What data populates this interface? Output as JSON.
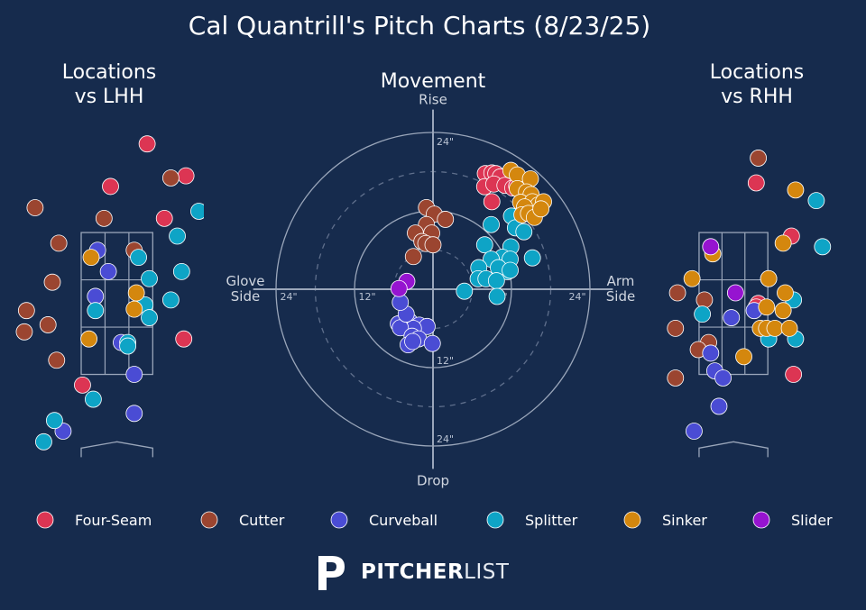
{
  "title": "Cal Quantrill's Pitch Charts (8/23/25)",
  "colors": {
    "background": "#162b4d",
    "Four-Seam": "#dc3553",
    "Cutter": "#9b4530",
    "Curveball": "#4a4cd4",
    "Splitter": "#0ea4c6",
    "Sinker": "#d4870e",
    "Slider": "#9614d0"
  },
  "brand": {
    "bold": "PITCHER",
    "light": "LIST"
  },
  "chart_data": [
    {
      "type": "scatter",
      "name": "lhh",
      "title": "Locations\nvs LHH",
      "xlim": [
        -2.4,
        2.1
      ],
      "ylim": [
        0.3,
        5.0
      ],
      "points": [
        {
          "pitch": "Four-Seam",
          "x": 0.7,
          "y": 4.75
        },
        {
          "pitch": "Four-Seam",
          "x": 1.6,
          "y": 4.3
        },
        {
          "pitch": "Four-Seam",
          "x": -0.15,
          "y": 4.15
        },
        {
          "pitch": "Four-Seam",
          "x": 1.1,
          "y": 3.7
        },
        {
          "pitch": "Four-Seam",
          "x": 1.55,
          "y": 2.0
        },
        {
          "pitch": "Four-Seam",
          "x": -0.8,
          "y": 1.35
        },
        {
          "pitch": "Cutter",
          "x": 1.25,
          "y": 4.27
        },
        {
          "pitch": "Cutter",
          "x": -1.9,
          "y": 3.85
        },
        {
          "pitch": "Cutter",
          "x": -0.3,
          "y": 3.7
        },
        {
          "pitch": "Cutter",
          "x": -1.35,
          "y": 3.35
        },
        {
          "pitch": "Cutter",
          "x": 0.4,
          "y": 3.25
        },
        {
          "pitch": "Cutter",
          "x": -1.5,
          "y": 2.8
        },
        {
          "pitch": "Cutter",
          "x": -2.1,
          "y": 2.4
        },
        {
          "pitch": "Cutter",
          "x": -1.6,
          "y": 2.2
        },
        {
          "pitch": "Cutter",
          "x": -2.15,
          "y": 2.1
        },
        {
          "pitch": "Cutter",
          "x": -1.4,
          "y": 1.7
        },
        {
          "pitch": "Curveball",
          "x": -0.45,
          "y": 3.25
        },
        {
          "pitch": "Curveball",
          "x": -0.2,
          "y": 2.95
        },
        {
          "pitch": "Curveball",
          "x": -0.5,
          "y": 2.6
        },
        {
          "pitch": "Curveball",
          "x": 0.1,
          "y": 1.95
        },
        {
          "pitch": "Curveball",
          "x": 0.4,
          "y": 1.5
        },
        {
          "pitch": "Curveball",
          "x": 0.4,
          "y": 0.95
        },
        {
          "pitch": "Curveball",
          "x": -1.25,
          "y": 0.7
        },
        {
          "pitch": "Splitter",
          "x": 1.9,
          "y": 3.8
        },
        {
          "pitch": "Splitter",
          "x": 1.4,
          "y": 3.45
        },
        {
          "pitch": "Splitter",
          "x": 0.5,
          "y": 3.15
        },
        {
          "pitch": "Splitter",
          "x": 1.5,
          "y": 2.95
        },
        {
          "pitch": "Splitter",
          "x": 0.75,
          "y": 2.85
        },
        {
          "pitch": "Splitter",
          "x": 1.25,
          "y": 2.55
        },
        {
          "pitch": "Splitter",
          "x": 0.65,
          "y": 2.48
        },
        {
          "pitch": "Splitter",
          "x": -0.5,
          "y": 2.4
        },
        {
          "pitch": "Splitter",
          "x": 0.75,
          "y": 2.3
        },
        {
          "pitch": "Splitter",
          "x": 0.25,
          "y": 1.95
        },
        {
          "pitch": "Splitter",
          "x": 0.25,
          "y": 1.9
        },
        {
          "pitch": "Splitter",
          "x": -0.55,
          "y": 1.15
        },
        {
          "pitch": "Splitter",
          "x": -1.45,
          "y": 0.85
        },
        {
          "pitch": "Splitter",
          "x": -1.7,
          "y": 0.55
        },
        {
          "pitch": "Sinker",
          "x": -0.6,
          "y": 3.15
        },
        {
          "pitch": "Sinker",
          "x": 0.45,
          "y": 2.65
        },
        {
          "pitch": "Sinker",
          "x": 0.4,
          "y": 2.42
        },
        {
          "pitch": "Sinker",
          "x": -0.65,
          "y": 2.0
        }
      ]
    },
    {
      "type": "scatter",
      "name": "movement",
      "title": "Movement",
      "labels": {
        "top": "Rise",
        "bottom": "Drop",
        "left": "Glove\nSide",
        "right": "Arm\nSide"
      },
      "rings": [
        {
          "value": 12,
          "style": "solid",
          "label": "12\""
        },
        {
          "value": 18,
          "style": "dashed",
          "label": ""
        },
        {
          "value": 24,
          "style": "solid",
          "label": "24\""
        }
      ],
      "inner_ring": 6,
      "range": 27.5,
      "points": [
        {
          "pitch": "Four-Seam",
          "x": 8.0,
          "y": 17.7
        },
        {
          "pitch": "Four-Seam",
          "x": 9.0,
          "y": 17.8
        },
        {
          "pitch": "Four-Seam",
          "x": 9.6,
          "y": 17.7
        },
        {
          "pitch": "Four-Seam",
          "x": 10.3,
          "y": 17.2
        },
        {
          "pitch": "Four-Seam",
          "x": 7.9,
          "y": 15.7
        },
        {
          "pitch": "Four-Seam",
          "x": 9.3,
          "y": 16.1
        },
        {
          "pitch": "Four-Seam",
          "x": 11.0,
          "y": 15.9
        },
        {
          "pitch": "Four-Seam",
          "x": 12.2,
          "y": 15.5
        },
        {
          "pitch": "Four-Seam",
          "x": 12.8,
          "y": 15.8
        },
        {
          "pitch": "Four-Seam",
          "x": 13.3,
          "y": 15.6
        },
        {
          "pitch": "Four-Seam",
          "x": 9.0,
          "y": 13.4
        },
        {
          "pitch": "Cutter",
          "x": -1.0,
          "y": 12.5
        },
        {
          "pitch": "Cutter",
          "x": 0.2,
          "y": 11.5
        },
        {
          "pitch": "Cutter",
          "x": 1.9,
          "y": 10.7
        },
        {
          "pitch": "Cutter",
          "x": -1.0,
          "y": 9.9
        },
        {
          "pitch": "Cutter",
          "x": -2.7,
          "y": 8.6
        },
        {
          "pitch": "Cutter",
          "x": -0.2,
          "y": 8.6
        },
        {
          "pitch": "Cutter",
          "x": -1.7,
          "y": 7.3
        },
        {
          "pitch": "Cutter",
          "x": -1.1,
          "y": 7.0
        },
        {
          "pitch": "Cutter",
          "x": 0.0,
          "y": 6.8
        },
        {
          "pitch": "Cutter",
          "x": -3.0,
          "y": 5.0
        },
        {
          "pitch": "Curveball",
          "x": -5.3,
          "y": -5.3
        },
        {
          "pitch": "Curveball",
          "x": -3.6,
          "y": -4.9
        },
        {
          "pitch": "Curveball",
          "x": -2.1,
          "y": -5.5
        },
        {
          "pitch": "Curveball",
          "x": -0.9,
          "y": -5.7
        },
        {
          "pitch": "Curveball",
          "x": -3.0,
          "y": -6.0
        },
        {
          "pitch": "Curveball",
          "x": -5.0,
          "y": -5.9
        },
        {
          "pitch": "Curveball",
          "x": -3.2,
          "y": -7.2
        },
        {
          "pitch": "Curveball",
          "x": -3.8,
          "y": -8.5
        },
        {
          "pitch": "Curveball",
          "x": -2.2,
          "y": -7.6
        },
        {
          "pitch": "Curveball",
          "x": -4.1,
          "y": -3.8
        },
        {
          "pitch": "Curveball",
          "x": -5.0,
          "y": -2.0
        },
        {
          "pitch": "Curveball",
          "x": -3.1,
          "y": -8.0
        },
        {
          "pitch": "Curveball",
          "x": -0.1,
          "y": -8.3
        },
        {
          "pitch": "Splitter",
          "x": 8.9,
          "y": 9.9
        },
        {
          "pitch": "Splitter",
          "x": 12.0,
          "y": 11.2
        },
        {
          "pitch": "Splitter",
          "x": 12.6,
          "y": 9.4
        },
        {
          "pitch": "Splitter",
          "x": 13.9,
          "y": 8.8
        },
        {
          "pitch": "Splitter",
          "x": 7.9,
          "y": 6.8
        },
        {
          "pitch": "Splitter",
          "x": 11.9,
          "y": 6.5
        },
        {
          "pitch": "Splitter",
          "x": 10.6,
          "y": 4.9
        },
        {
          "pitch": "Splitter",
          "x": 8.9,
          "y": 4.6
        },
        {
          "pitch": "Splitter",
          "x": 11.8,
          "y": 4.6
        },
        {
          "pitch": "Splitter",
          "x": 15.2,
          "y": 4.8
        },
        {
          "pitch": "Splitter",
          "x": 11.4,
          "y": 2.7
        },
        {
          "pitch": "Splitter",
          "x": 7.0,
          "y": 3.3
        },
        {
          "pitch": "Splitter",
          "x": 10.0,
          "y": 3.3
        },
        {
          "pitch": "Splitter",
          "x": 11.8,
          "y": 2.9
        },
        {
          "pitch": "Splitter",
          "x": 6.9,
          "y": 1.6
        },
        {
          "pitch": "Splitter",
          "x": 8.1,
          "y": 1.6
        },
        {
          "pitch": "Splitter",
          "x": 9.7,
          "y": 1.3
        },
        {
          "pitch": "Splitter",
          "x": 4.8,
          "y": -0.3
        },
        {
          "pitch": "Splitter",
          "x": 9.8,
          "y": -1.1
        },
        {
          "pitch": "Sinker",
          "x": 11.9,
          "y": 18.2
        },
        {
          "pitch": "Sinker",
          "x": 12.9,
          "y": 17.5
        },
        {
          "pitch": "Sinker",
          "x": 14.9,
          "y": 16.9
        },
        {
          "pitch": "Sinker",
          "x": 12.9,
          "y": 15.4
        },
        {
          "pitch": "Sinker",
          "x": 14.3,
          "y": 14.9
        },
        {
          "pitch": "Sinker",
          "x": 15.0,
          "y": 14.5
        },
        {
          "pitch": "Sinker",
          "x": 13.4,
          "y": 13.3
        },
        {
          "pitch": "Sinker",
          "x": 15.2,
          "y": 13.4
        },
        {
          "pitch": "Sinker",
          "x": 16.1,
          "y": 12.9
        },
        {
          "pitch": "Sinker",
          "x": 16.9,
          "y": 13.4
        },
        {
          "pitch": "Sinker",
          "x": 14.0,
          "y": 12.6
        },
        {
          "pitch": "Sinker",
          "x": 13.6,
          "y": 11.4
        },
        {
          "pitch": "Sinker",
          "x": 14.6,
          "y": 11.6
        },
        {
          "pitch": "Sinker",
          "x": 15.5,
          "y": 11.0
        },
        {
          "pitch": "Sinker",
          "x": 16.5,
          "y": 12.3
        },
        {
          "pitch": "Slider",
          "x": -4.0,
          "y": 1.2
        },
        {
          "pitch": "Slider",
          "x": -5.2,
          "y": 0.1
        }
      ]
    },
    {
      "type": "scatter",
      "name": "rhh",
      "title": "Locations\nvs RHH",
      "xlim": [
        -1.7,
        3.2
      ],
      "ylim": [
        0.3,
        5.0
      ],
      "points": [
        {
          "pitch": "Four-Seam",
          "x": 0.55,
          "y": 4.2
        },
        {
          "pitch": "Four-Seam",
          "x": 1.4,
          "y": 3.45
        },
        {
          "pitch": "Four-Seam",
          "x": 0.6,
          "y": 2.5
        },
        {
          "pitch": "Four-Seam",
          "x": 0.55,
          "y": 2.45
        },
        {
          "pitch": "Four-Seam",
          "x": 1.45,
          "y": 1.5
        },
        {
          "pitch": "Cutter",
          "x": 0.6,
          "y": 4.55
        },
        {
          "pitch": "Cutter",
          "x": -1.35,
          "y": 2.65
        },
        {
          "pitch": "Cutter",
          "x": -0.7,
          "y": 2.55
        },
        {
          "pitch": "Cutter",
          "x": -1.4,
          "y": 2.15
        },
        {
          "pitch": "Cutter",
          "x": -0.6,
          "y": 1.95
        },
        {
          "pitch": "Cutter",
          "x": -0.85,
          "y": 1.85
        },
        {
          "pitch": "Cutter",
          "x": -1.4,
          "y": 1.45
        },
        {
          "pitch": "Curveball",
          "x": 0.85,
          "y": 2.85
        },
        {
          "pitch": "Curveball",
          "x": 0.5,
          "y": 2.4
        },
        {
          "pitch": "Curveball",
          "x": -0.05,
          "y": 2.3
        },
        {
          "pitch": "Curveball",
          "x": -0.55,
          "y": 1.8
        },
        {
          "pitch": "Curveball",
          "x": -0.45,
          "y": 1.55
        },
        {
          "pitch": "Curveball",
          "x": -0.25,
          "y": 1.45
        },
        {
          "pitch": "Curveball",
          "x": -0.35,
          "y": 1.05
        },
        {
          "pitch": "Curveball",
          "x": -0.95,
          "y": 0.7
        },
        {
          "pitch": "Splitter",
          "x": 2.0,
          "y": 3.95
        },
        {
          "pitch": "Splitter",
          "x": 2.15,
          "y": 3.3
        },
        {
          "pitch": "Splitter",
          "x": 1.45,
          "y": 2.55
        },
        {
          "pitch": "Splitter",
          "x": -0.75,
          "y": 2.35
        },
        {
          "pitch": "Splitter",
          "x": 0.85,
          "y": 2.0
        },
        {
          "pitch": "Splitter",
          "x": 1.5,
          "y": 2.0
        },
        {
          "pitch": "Sinker",
          "x": 1.5,
          "y": 4.1
        },
        {
          "pitch": "Sinker",
          "x": 1.2,
          "y": 3.35
        },
        {
          "pitch": "Sinker",
          "x": -0.5,
          "y": 3.2
        },
        {
          "pitch": "Sinker",
          "x": -1.0,
          "y": 2.85
        },
        {
          "pitch": "Sinker",
          "x": 0.85,
          "y": 2.85
        },
        {
          "pitch": "Sinker",
          "x": 1.25,
          "y": 2.65
        },
        {
          "pitch": "Sinker",
          "x": 0.8,
          "y": 2.45
        },
        {
          "pitch": "Sinker",
          "x": 1.2,
          "y": 2.4
        },
        {
          "pitch": "Sinker",
          "x": 0.65,
          "y": 2.15
        },
        {
          "pitch": "Sinker",
          "x": 0.8,
          "y": 2.15
        },
        {
          "pitch": "Sinker",
          "x": 1.0,
          "y": 2.15
        },
        {
          "pitch": "Sinker",
          "x": 1.35,
          "y": 2.15
        },
        {
          "pitch": "Sinker",
          "x": 0.25,
          "y": 1.75
        },
        {
          "pitch": "Slider",
          "x": -0.55,
          "y": 3.3
        },
        {
          "pitch": "Slider",
          "x": 0.05,
          "y": 2.65
        }
      ]
    }
  ],
  "legend": [
    "Four-Seam",
    "Cutter",
    "Curveball",
    "Splitter",
    "Sinker",
    "Slider"
  ]
}
